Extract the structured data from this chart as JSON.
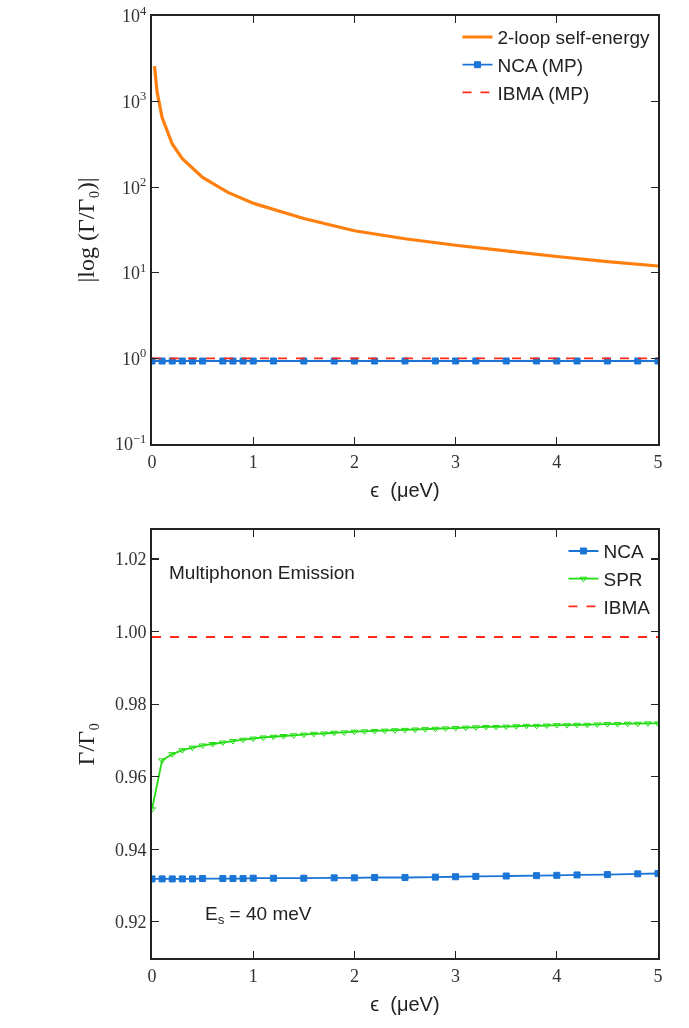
{
  "chart_data": [
    {
      "type": "line",
      "xlabel": "ϵ  (μeV)",
      "ylabel": "|log (Γ/Γ₀)|",
      "log": "y",
      "grid": false,
      "legend": "top right",
      "xlim": [
        0,
        5
      ],
      "xticks": [
        0,
        1,
        2,
        3,
        4,
        5
      ],
      "ylim": [
        0.1,
        10000
      ],
      "yticks": [
        {
          "value": 0.1,
          "label": "10$^{−1}$"
        },
        {
          "value": 1,
          "label": "10$^{0}$"
        },
        {
          "value": 10,
          "label": "10$^{1}$"
        },
        {
          "value": 100,
          "label": "10$^{2}$"
        },
        {
          "value": 1000,
          "label": "10$^{3}$"
        },
        {
          "value": 10000,
          "label": "10$^{4}$"
        }
      ],
      "series": [
        {
          "name": "2-loop self-energy",
          "color": "#ff7f0e",
          "marker": "none",
          "line_style": "solid",
          "x": [
            0.025,
            0.05,
            0.1,
            0.2,
            0.3,
            0.5,
            0.75,
            1,
            1.5,
            2,
            2.5,
            3,
            3.5,
            4,
            4.5,
            5
          ],
          "values": [
            2600,
            1300,
            650,
            320,
            215,
            130,
            87,
            65,
            43,
            31,
            25,
            21,
            18,
            15.5,
            13.5,
            12
          ]
        },
        {
          "name": "NCA (MP)",
          "color": "#1a75d6",
          "marker": "square",
          "line_style": "solid",
          "x": [
            0,
            0.1,
            0.2,
            0.3,
            0.4,
            0.5,
            0.7,
            0.8,
            0.9,
            1,
            1.2,
            1.5,
            1.8,
            2,
            2.2,
            2.5,
            2.8,
            3,
            3.2,
            3.5,
            3.8,
            4,
            4.2,
            4.5,
            4.8,
            5
          ],
          "values": [
            0.932,
            0.932,
            0.932,
            0.932,
            0.932,
            0.932,
            0.932,
            0.932,
            0.932,
            0.932,
            0.932,
            0.932,
            0.932,
            0.932,
            0.932,
            0.933,
            0.933,
            0.933,
            0.933,
            0.933,
            0.933,
            0.933,
            0.933,
            0.933,
            0.933,
            0.933
          ]
        },
        {
          "name": "IBMA (MP)",
          "color": "#ff2a1a",
          "marker": "none",
          "line_style": "dashed",
          "x": [
            0,
            5
          ],
          "values": [
            0.999,
            0.999
          ]
        }
      ]
    },
    {
      "type": "line",
      "xlabel": "ϵ  (μeV)",
      "ylabel": "Γ/Γ₀",
      "grid": false,
      "legend": "top right",
      "xlim": [
        0,
        5
      ],
      "xticks": [
        0,
        1,
        2,
        3,
        4,
        5
      ],
      "ylim": [
        0.91,
        1.028
      ],
      "yticks": [
        0.92,
        0.94,
        0.96,
        0.98,
        {
          "value": 1,
          "label": "1.00"
        },
        1.02
      ],
      "annotations": [
        "Multiphonon Emission",
        "E$_{s}$ = 40 meV"
      ],
      "series": [
        {
          "name": "NCA",
          "color": "#1a75d6",
          "marker": "square",
          "line_style": "solid",
          "x": [
            0,
            0.1,
            0.2,
            0.3,
            0.4,
            0.5,
            0.7,
            0.8,
            0.9,
            1,
            1.2,
            1.5,
            1.8,
            2,
            2.2,
            2.5,
            2.8,
            3,
            3.2,
            3.5,
            3.8,
            4,
            4.2,
            4.5,
            4.8,
            5
          ],
          "values": [
            0.9318,
            0.9318,
            0.9318,
            0.9318,
            0.9318,
            0.9319,
            0.9319,
            0.9319,
            0.9319,
            0.932,
            0.932,
            0.932,
            0.9321,
            0.9321,
            0.9322,
            0.9322,
            0.9323,
            0.9324,
            0.9325,
            0.9326,
            0.9327,
            0.9328,
            0.9329,
            0.933,
            0.9332,
            0.9333
          ]
        },
        {
          "name": "SPR",
          "color": "#22dd11",
          "marker": "triangle",
          "line_style": "solid",
          "x": [
            0,
            0.1,
            0.2,
            0.3,
            0.4,
            0.5,
            0.6,
            0.7,
            0.8,
            0.9,
            1,
            1.1,
            1.2,
            1.3,
            1.4,
            1.5,
            1.6,
            1.7,
            1.8,
            1.9,
            2,
            2.1,
            2.2,
            2.3,
            2.4,
            2.5,
            2.6,
            2.7,
            2.8,
            2.9,
            3,
            3.1,
            3.2,
            3.3,
            3.4,
            3.5,
            3.6,
            3.7,
            3.8,
            3.9,
            4,
            4.1,
            4.2,
            4.3,
            4.4,
            4.5,
            4.6,
            4.7,
            4.8,
            4.9,
            5
          ],
          "values": [
            0.951,
            0.9645,
            0.9662,
            0.9673,
            0.968,
            0.9686,
            0.969,
            0.9694,
            0.9698,
            0.9702,
            0.9705,
            0.9708,
            0.971,
            0.9712,
            0.9714,
            0.9716,
            0.9718,
            0.9719,
            0.9721,
            0.9722,
            0.9724,
            0.9725,
            0.9726,
            0.9727,
            0.9728,
            0.9729,
            0.973,
            0.9731,
            0.9732,
            0.9733,
            0.9734,
            0.9735,
            0.9736,
            0.9737,
            0.9737,
            0.9738,
            0.9739,
            0.974,
            0.974,
            0.9741,
            0.9742,
            0.9742,
            0.9743,
            0.9743,
            0.9744,
            0.9745,
            0.9745,
            0.9746,
            0.9746,
            0.9747,
            0.9747
          ]
        },
        {
          "name": "IBMA",
          "color": "#ff2a1a",
          "marker": "none",
          "line_style": "dashed",
          "x": [
            0,
            5
          ],
          "values": [
            0.9985,
            0.9985
          ]
        }
      ]
    }
  ]
}
